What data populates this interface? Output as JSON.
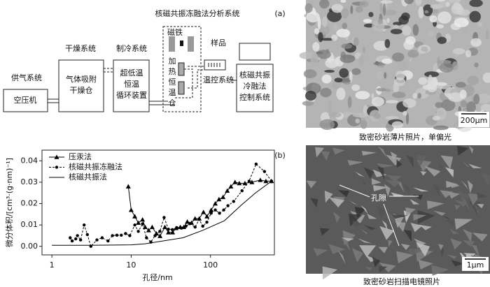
{
  "diagram": {
    "title": "核磁共振冻融法分析系统",
    "panel_label": "(a)",
    "supply": {
      "label": "供气系统",
      "box": [
        "空压机"
      ]
    },
    "drying": {
      "label": "干燥系统",
      "box": [
        "气体吸附",
        "干燥仓"
      ]
    },
    "cooling": {
      "label": "制冷系统",
      "box": [
        "超低温",
        "恒温",
        "循环装置"
      ]
    },
    "chamber": {
      "magnet": "磁铁",
      "oven": [
        "加",
        "热",
        "恒",
        "温",
        "仓"
      ]
    },
    "sample": "样品",
    "temp_control": "温控系统",
    "controller": [
      "核磁共振",
      "冷融法",
      "控制系统"
    ]
  },
  "chart_data": {
    "type": "line",
    "panel_label": "(b)",
    "xlabel": "孔径/nm",
    "ylabel": "微分体积/[cm³·(g·nm)⁻¹]",
    "xscale": "log",
    "xlim": [
      0.75,
      640
    ],
    "xticks": [
      1,
      10,
      100
    ],
    "ylim": [
      -0.004,
      0.045
    ],
    "yticks": [
      {
        "value": 0,
        "label": "0.00"
      },
      {
        "value": 0.01,
        "label": "0.01"
      },
      {
        "value": 0.02,
        "label": "0.02"
      },
      {
        "value": 0.03,
        "label": "0.03"
      },
      {
        "value": 0.04,
        "label": "0.04"
      }
    ],
    "legend": "upper left",
    "series": [
      {
        "name": "压汞法",
        "color": "#000000",
        "marker": "triangle",
        "dashed": false,
        "x": [
          9.2,
          10,
          11.1,
          12.3,
          13.9,
          15,
          16.6,
          18.4,
          20.8,
          23.1,
          26.6,
          29.5,
          33.3,
          36.8,
          41.6,
          46.1,
          51,
          57.7,
          63.9,
          72.1,
          81.6,
          90.3,
          102,
          115,
          128,
          144,
          163,
          181,
          204,
          231,
          272,
          333,
          425,
          500,
          589
        ],
        "values": [
          0.028,
          0.017,
          0.014,
          0.011,
          0.0125,
          0.009,
          0.0075,
          0.009,
          0.006,
          0.0048,
          0.009,
          0.0065,
          0.0065,
          0.0085,
          0.009,
          0.009,
          0.0115,
          0.011,
          0.013,
          0.013,
          0.016,
          0.014,
          0.017,
          0.02,
          0.022,
          0.023,
          0.026,
          0.028,
          0.03,
          0.0295,
          0.0295,
          0.03,
          0.031,
          0.0305,
          0.0305
        ]
      },
      {
        "name": "核磁共振冻融法",
        "color": "#000000",
        "marker": "circle",
        "dashed": true,
        "x": [
          1.7,
          1.8,
          2.0,
          2.1,
          2.3,
          2.55,
          2.8,
          3.1,
          3.7,
          4.3,
          5.1,
          5.8,
          6.6,
          7.5,
          8.5,
          9.6,
          11.1,
          12.3,
          13.9,
          15.6,
          17.7,
          20,
          23,
          26,
          29.5,
          33,
          37.6,
          43,
          49,
          55,
          64,
          72,
          80,
          90,
          102,
          115,
          130,
          147,
          166,
          196,
          250,
          307,
          376,
          480,
          589
        ],
        "values": [
          0.004,
          0.0025,
          0.0035,
          0.005,
          0.003,
          0.01,
          0.0055,
          0,
          0.003,
          0.004,
          0.0025,
          0.005,
          0.0052,
          0.0052,
          0.006,
          0.005,
          0.01,
          0.007,
          0.0105,
          0.004,
          0.002,
          0.005,
          0.007,
          0.0135,
          0.008,
          0.0078,
          0.0087,
          0.0085,
          0.0094,
          0.0106,
          0.009,
          0.0126,
          0.0094,
          0.0113,
          0.0155,
          0.017,
          0.0155,
          0.017,
          0.019,
          0.021,
          0.026,
          0.0305,
          0.0385,
          0.035,
          0.0305
        ]
      },
      {
        "name": "核磁共振法",
        "color": "#000000",
        "marker": "none",
        "dashed": false,
        "x": [
          1,
          3,
          10,
          15,
          25,
          45,
          80,
          150,
          240,
          370,
          589
        ],
        "values": [
          0.0005,
          0.0005,
          0.0007,
          0.0012,
          0.0025,
          0.004,
          0.0075,
          0.012,
          0.019,
          0.025,
          0.0305
        ]
      }
    ]
  },
  "images": [
    {
      "caption": "致密砂岩薄片照片，单偏光",
      "scale_label": "200μm"
    },
    {
      "caption": "致密砂岩扫描电镜照片",
      "scale_label": "1μm",
      "annotation": "孔隙"
    }
  ]
}
